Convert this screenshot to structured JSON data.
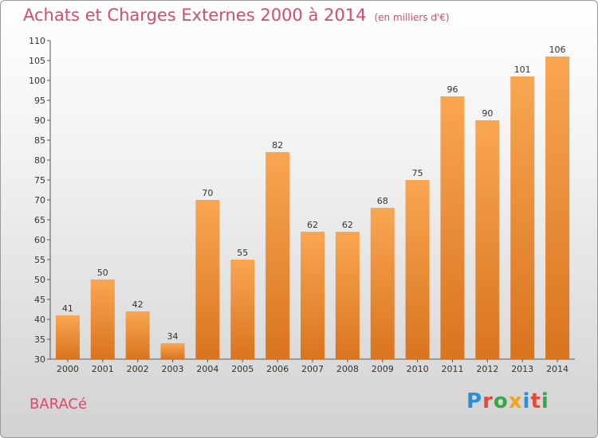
{
  "header": {
    "title": "Achats et Charges Externes 2000 à 2014",
    "unit": "(en milliers d'€)"
  },
  "footer": {
    "city": "BARACé",
    "logo": "Proxiti"
  },
  "colors": {
    "bar_top": "#f9a652",
    "bar_bottom": "#d9741f",
    "text_accent": "#d94a6a"
  },
  "chart_data": {
    "type": "bar",
    "title": "Achats et Charges Externes 2000 à 2014",
    "subtitle": "(en milliers d'€)",
    "categories": [
      "2000",
      "2001",
      "2002",
      "2003",
      "2004",
      "2005",
      "2006",
      "2007",
      "2008",
      "2009",
      "2010",
      "2011",
      "2012",
      "2013",
      "2014"
    ],
    "values": [
      41,
      50,
      42,
      34,
      70,
      55,
      82,
      62,
      62,
      68,
      75,
      96,
      90,
      101,
      106
    ],
    "ylim": [
      30,
      110
    ],
    "yticks": [
      30,
      35,
      40,
      45,
      50,
      55,
      60,
      65,
      70,
      75,
      80,
      85,
      90,
      95,
      100,
      105,
      110
    ],
    "grid": false,
    "data_labels": true
  }
}
